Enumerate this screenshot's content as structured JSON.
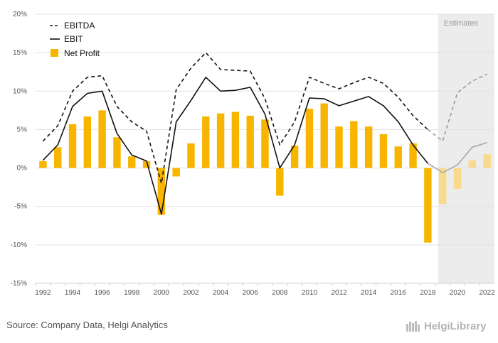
{
  "chart_data": {
    "type": "bar+line",
    "title": "",
    "xlabel": "",
    "ylabel": "",
    "ylim": [
      -15,
      20
    ],
    "yticks": [
      -15,
      -10,
      -5,
      0,
      5,
      10,
      15,
      20
    ],
    "ytick_labels": [
      "-15%",
      "-10%",
      "-5%",
      "0%",
      "5%",
      "10%",
      "15%",
      "20%"
    ],
    "x": [
      1992,
      1993,
      1994,
      1995,
      1996,
      1997,
      1998,
      1999,
      2000,
      2001,
      2002,
      2003,
      2004,
      2005,
      2006,
      2007,
      2008,
      2009,
      2010,
      2011,
      2012,
      2013,
      2014,
      2015,
      2016,
      2017,
      2018,
      2019,
      2020,
      2021,
      2022
    ],
    "xtick_labels": [
      "1992",
      "1994",
      "1996",
      "1998",
      "2000",
      "2002",
      "2004",
      "2006",
      "2008",
      "2010",
      "2012",
      "2014",
      "2016",
      "2018",
      "2020",
      "2022"
    ],
    "estimate_start_index": 27,
    "estimates_label": "Estimates",
    "legend": [
      {
        "name": "EBITDA",
        "style": "dashed-line"
      },
      {
        "name": "EBIT",
        "style": "solid-line"
      },
      {
        "name": "Net Profit",
        "style": "bar"
      }
    ],
    "series": [
      {
        "name": "EBITDA",
        "type": "line",
        "dash": true,
        "color": "#111111",
        "estimate_color": "#9a9a9a",
        "values": [
          3.5,
          5.5,
          10.0,
          11.8,
          12.0,
          8.0,
          6.0,
          4.8,
          -2.0,
          10.2,
          13.0,
          15.0,
          12.8,
          12.7,
          12.6,
          9.0,
          3.0,
          6.0,
          11.8,
          11.0,
          10.3,
          11.1,
          11.8,
          11.0,
          9.2,
          6.8,
          5.0,
          3.5,
          9.8,
          11.3,
          12.2
        ]
      },
      {
        "name": "EBIT",
        "type": "line",
        "dash": false,
        "color": "#111111",
        "estimate_color": "#aaaaaa",
        "values": [
          1.0,
          3.0,
          8.0,
          9.7,
          10.0,
          4.5,
          1.7,
          0.9,
          -6.0,
          6.0,
          8.8,
          11.8,
          10.0,
          10.1,
          10.5,
          7.0,
          0.0,
          3.0,
          9.1,
          9.0,
          8.1,
          8.7,
          9.3,
          8.1,
          6.0,
          3.0,
          0.6,
          -0.6,
          0.4,
          2.7,
          3.3
        ]
      },
      {
        "name": "Net Profit",
        "type": "bar",
        "color": "#f7b500",
        "estimate_color": "#f9d98c",
        "values": [
          0.9,
          2.7,
          5.7,
          6.7,
          7.5,
          4.0,
          1.5,
          0.9,
          -6.1,
          -1.1,
          3.2,
          6.7,
          7.1,
          7.3,
          6.8,
          6.3,
          -3.6,
          2.9,
          7.7,
          8.4,
          5.4,
          6.1,
          5.4,
          4.4,
          2.8,
          3.2,
          -9.7,
          -4.7,
          -2.7,
          1.0,
          1.8
        ]
      }
    ]
  },
  "footer": {
    "source": "Source: Company Data, Helgi Analytics",
    "brand": "HelgiLibrary"
  },
  "colors": {
    "estimate_band": "#ececec",
    "gridline": "#e3e3e3",
    "bar": "#f7b500"
  }
}
